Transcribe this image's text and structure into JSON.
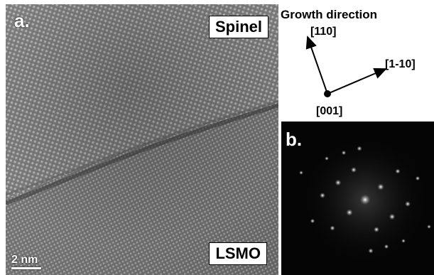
{
  "panel_a": {
    "label": "a.",
    "top_region": "Spinel",
    "bottom_region": "LSMO",
    "scale_bar": "2 nm"
  },
  "diagram": {
    "title": "Growth direction",
    "dir_up": "[110]",
    "dir_right": "[1-10]",
    "dir_zone": "[001]"
  },
  "panel_b": {
    "label": "b."
  },
  "colors": {
    "micrograph_gray": "#6f6f6f",
    "fft_background": "#050505"
  }
}
